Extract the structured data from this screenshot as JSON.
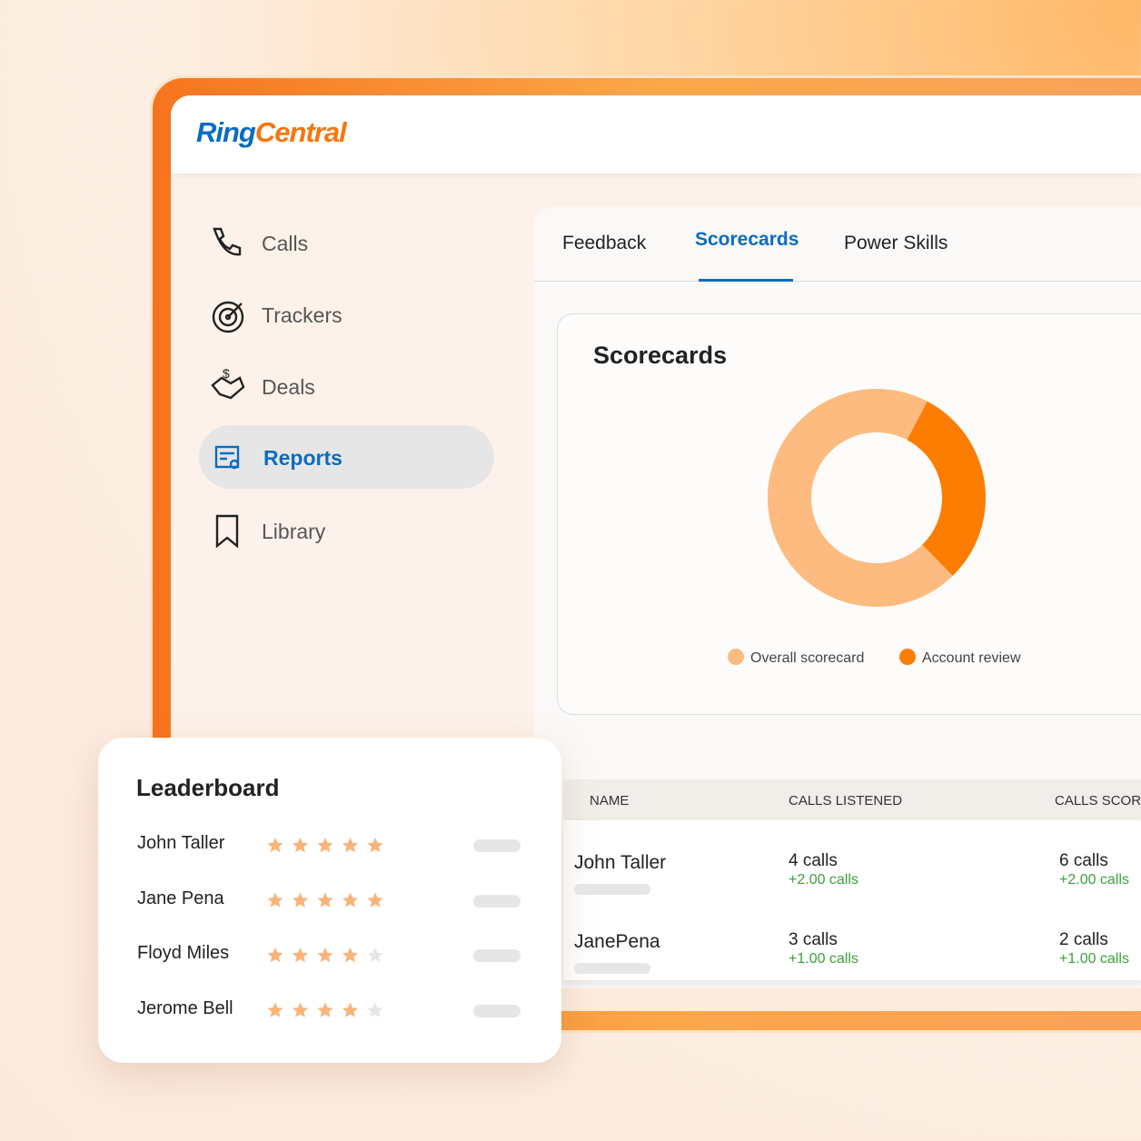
{
  "logo": [
    "Ring",
    "Central"
  ],
  "nav": [
    "Calls",
    "Trackers",
    "Deals",
    "Reports",
    "Library"
  ],
  "tabs": [
    "Feedback",
    "Scorecards",
    "Power Skills"
  ],
  "chart_data": {
    "type": "donut",
    "title": "Scorecards",
    "categories": [
      "Overall scorecard",
      "Account review"
    ],
    "values": [
      70,
      30
    ],
    "colors": [
      "#fdbb80",
      "#fd7d00"
    ]
  },
  "table": {
    "columns": [
      "NAME",
      "CALLS LISTENED",
      "CALLS SCORE"
    ],
    "rows": [
      [
        "John Taller",
        "4 calls",
        "+2.00 calls",
        "6 calls",
        "+2.00 calls"
      ],
      [
        "JanePena",
        "3 calls",
        "+1.00 calls",
        "2 calls",
        "+1.00 calls"
      ]
    ]
  },
  "leaderboard": {
    "title": "Leaderboard",
    "rows": [
      {
        "name": "John Taller",
        "rating": 5
      },
      {
        "name": "Jane Pena",
        "rating": 5
      },
      {
        "name": "Floyd Miles",
        "rating": 4
      },
      {
        "name": "Jerome Bell",
        "rating": 4
      }
    ]
  }
}
